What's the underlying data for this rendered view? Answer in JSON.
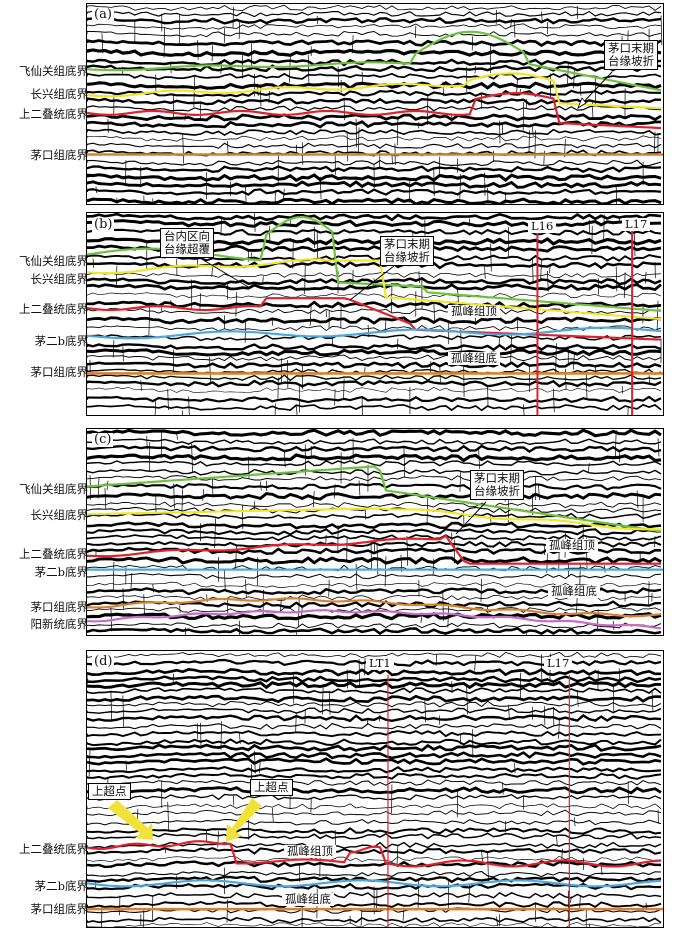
{
  "panels": [
    {
      "id": "(a)",
      "labels": [
        "飞仙关组底界",
        "长兴组底界",
        "上二叠统底界",
        "茅口组底界"
      ],
      "callouts": [
        "茅口末期\n台缘坡折"
      ]
    },
    {
      "id": "(b)",
      "labels": [
        "飞仙关组底界",
        "长兴组底界",
        "上二叠统底界",
        "茅二b底界",
        "茅口组底界"
      ],
      "callouts": [
        "台内区向\n台缘超覆",
        "茅口末期\n台缘坡折"
      ],
      "inlabels": [
        "孤峰组顶",
        "孤峰组底"
      ],
      "wells": [
        "L16",
        "L17"
      ]
    },
    {
      "id": "(c)",
      "labels": [
        "飞仙关组底界",
        "长兴组底界",
        "上二叠统底界",
        "茅二b底界",
        "茅口组底界",
        "阳新统底界"
      ],
      "callouts": [
        "茅口末期\n台缘坡折"
      ],
      "inlabels": [
        "孤峰组顶",
        "孤峰组底"
      ]
    },
    {
      "id": "(d)",
      "labels": [
        "上二叠统底界",
        "茅二b底界",
        "茅口组底界"
      ],
      "callouts": [
        "上超点",
        "上超点"
      ],
      "inlabels": [
        "孤峰组顶",
        "孤峰组底"
      ],
      "wells": [
        "LT1",
        "L17"
      ]
    }
  ],
  "colors": {
    "feixianguan": "#6ec13c",
    "changxing": "#f2e62a",
    "upper_permian": "#e0202a",
    "mao2b": "#4aa8e0",
    "maokou": "#d9822b",
    "yangxin": "#c86cc8",
    "well": "#e0202a",
    "arrow": "#f0e23a"
  }
}
